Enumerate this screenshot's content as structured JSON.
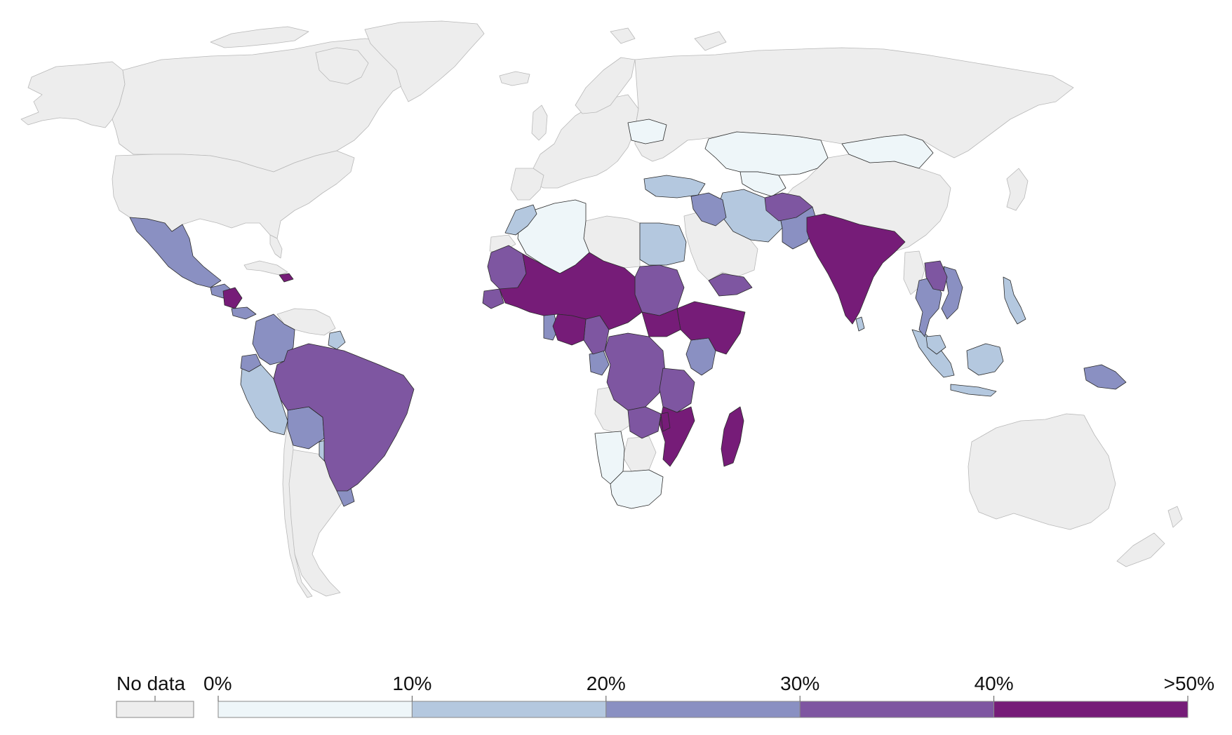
{
  "legend": {
    "no_data_label": "No data",
    "no_data_color": "#ededed",
    "bins": [
      {
        "color": "#eef6f9"
      },
      {
        "color": "#b4c8df"
      },
      {
        "color": "#8a90c2"
      },
      {
        "color": "#7e56a1"
      },
      {
        "color": "#761c78"
      }
    ],
    "tick_labels": [
      "0%",
      "10%",
      "20%",
      "30%",
      "40%",
      ">50%"
    ]
  },
  "colors": {
    "ocean": "#ffffff",
    "border": "#2b2b2b",
    "nodata_border": "#b8b8b8"
  }
}
